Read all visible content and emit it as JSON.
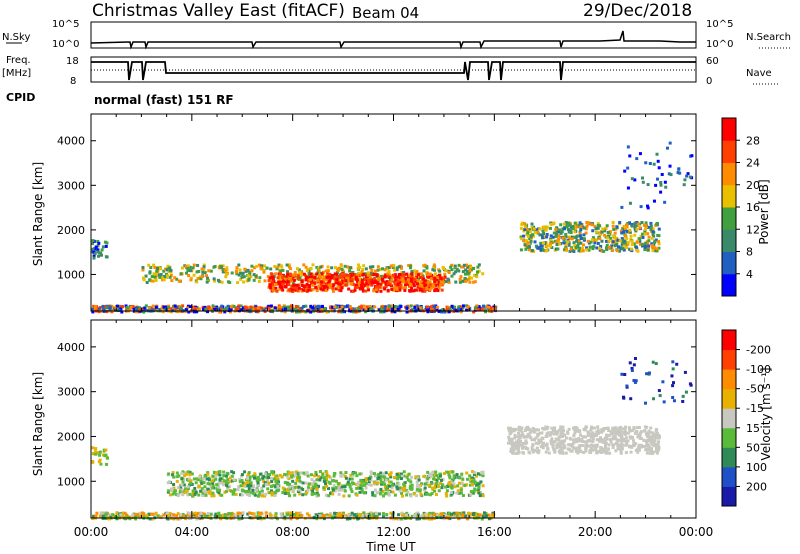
{
  "header": {
    "title": "Christmas Valley East (fitACF)",
    "beam": "Beam 04",
    "date": "29/Dec/2018"
  },
  "status_panels": {
    "nsky": {
      "label": "N.Sky",
      "right_label": "N.Search",
      "left_ticks": [
        "10^5",
        "10^0"
      ],
      "right_ticks": [
        "10^5",
        "10^0"
      ]
    },
    "freq": {
      "label_line1": "Freq.",
      "label_line2": "[MHz]",
      "right_label": "Nave",
      "left_ticks": [
        "18",
        "8"
      ],
      "right_ticks": [
        "60",
        "0"
      ]
    },
    "cpid": {
      "label": "CPID",
      "text": "normal (fast) 151 RF"
    }
  },
  "colors": {
    "power_scale": [
      "#0000ff",
      "#2060c0",
      "#3a8a6a",
      "#40a040",
      "#e8c000",
      "#ff8c00",
      "#ff4000",
      "#ff0000"
    ],
    "velocity_scale": [
      "#1a1aa8",
      "#2050c8",
      "#2e8b57",
      "#5aba3a",
      "#c8c8c0",
      "#e8b000",
      "#ff8c00",
      "#ff4000",
      "#ff0000"
    ]
  },
  "chart_data": [
    {
      "type": "heatmap",
      "name": "power-panel",
      "ylabel": "Slant Range [km]",
      "yticks": [
        "1000",
        "2000",
        "3000",
        "4000"
      ],
      "ylim": [
        180,
        4600
      ],
      "colorbar": {
        "label": "Power [dB]",
        "ticks": [
          "4",
          "8",
          "12",
          "16",
          "20",
          "24",
          "28"
        ],
        "range": [
          0,
          32
        ]
      }
    },
    {
      "type": "heatmap",
      "name": "velocity-panel",
      "ylabel": "Slant Range [km]",
      "yticks": [
        "1000",
        "2000",
        "3000",
        "4000"
      ],
      "ylim": [
        180,
        4600
      ],
      "colorbar": {
        "label": "Velocity [m s⁻¹]",
        "ticks": [
          "200",
          "100",
          "50",
          "15",
          "-15",
          "-50",
          "-100",
          "-200"
        ]
      }
    }
  ],
  "xaxis": {
    "label": "Time UT",
    "ticks": [
      "00:00",
      "04:00",
      "08:00",
      "12:00",
      "16:00",
      "20:00",
      "00:00"
    ],
    "xlim": [
      0,
      24
    ]
  }
}
